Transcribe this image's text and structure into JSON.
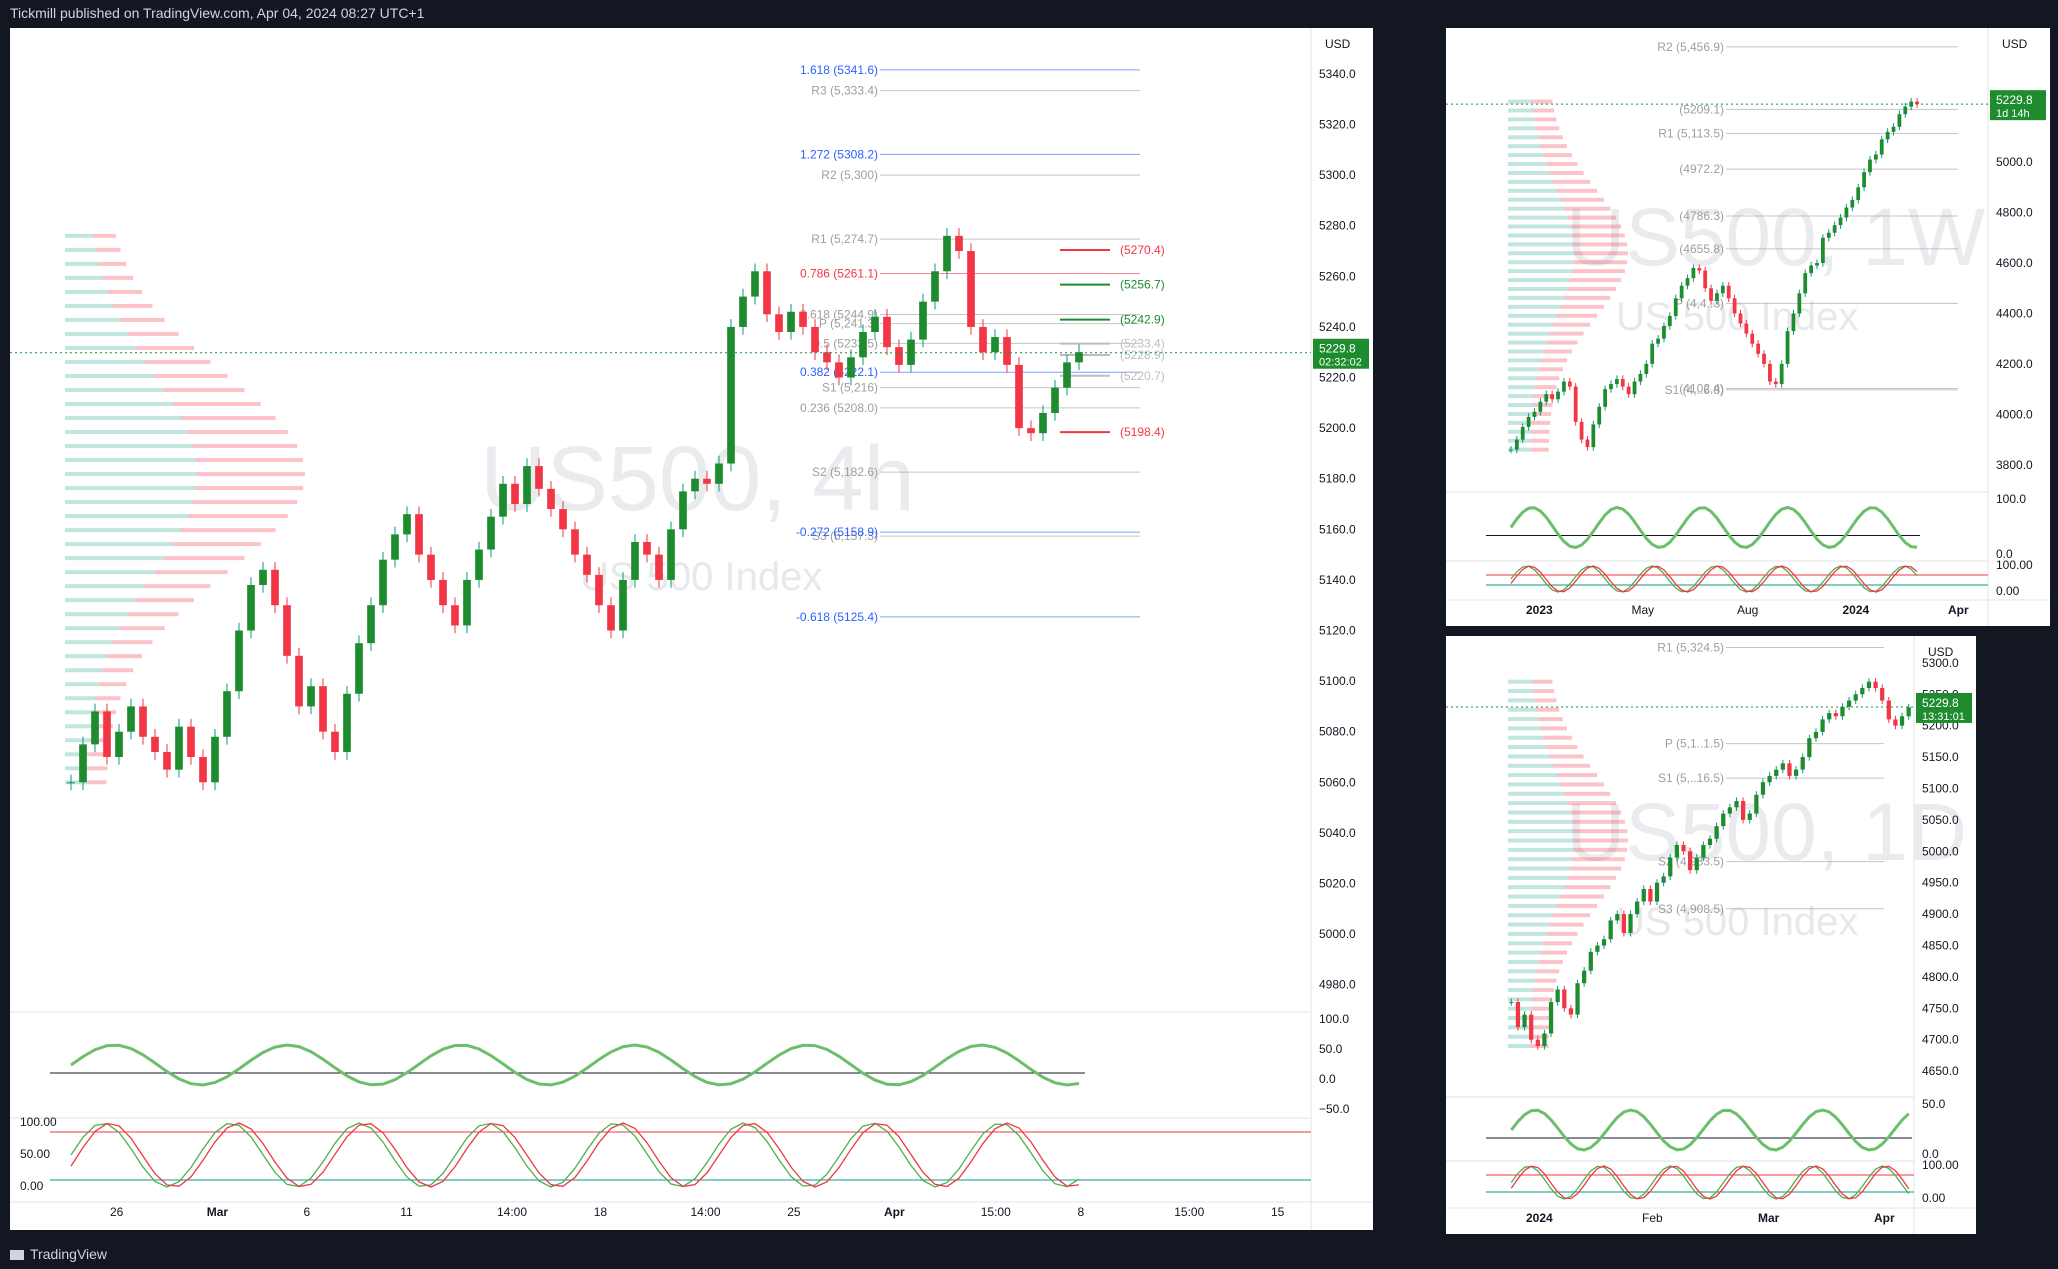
{
  "header": {
    "published": "Tickmill published on TradingView.com, Apr 04, 2024 08:27 UTC+1"
  },
  "footer": {
    "brand": "TradingView"
  },
  "colors": {
    "up": "#089981",
    "down": "#f23645",
    "fib": "#2962ff",
    "pivot": "#9e9e9e"
  },
  "chart_data": [
    {
      "type": "candlestick",
      "title": "US500, 4h",
      "watermark_symbol": "US500, 4h",
      "watermark_name": "US 500 Index",
      "currency": "USD",
      "last_price": "5229.8",
      "countdown": "02:32:02",
      "ylim": [
        4970,
        5355
      ],
      "y_ticks": [
        "5340.0",
        "5320.0",
        "5300.0",
        "5280.0",
        "5260.0",
        "5240.0",
        "5220.0",
        "5200.0",
        "5180.0",
        "5160.0",
        "5140.0",
        "5120.0",
        "5100.0",
        "5080.0",
        "5060.0",
        "5040.0",
        "5020.0",
        "5000.0",
        "4980.0"
      ],
      "x_ticks": [
        "26",
        "Mar",
        "6",
        "11",
        "14:00",
        "18",
        "14:00",
        "25",
        "Apr",
        "15:00",
        "8",
        "15:00",
        "15"
      ],
      "levels": [
        {
          "label": "1.618 (5341.6)",
          "value": 5341.6,
          "color": "#2962ff"
        },
        {
          "label": "R3 (5,333.4)",
          "value": 5333.4,
          "color": "#9e9e9e"
        },
        {
          "label": "1.272 (5308.2)",
          "value": 5308.2,
          "color": "#2962ff"
        },
        {
          "label": "R2 (5,300)",
          "value": 5300,
          "color": "#9e9e9e"
        },
        {
          "label": "R1 (5,274.7)",
          "value": 5274.7,
          "color": "#9e9e9e"
        },
        {
          "label": "0.786 (5261.1)",
          "value": 5261.1,
          "color": "#f23645"
        },
        {
          "label": "0.618 (5244.9)",
          "value": 5244.9,
          "color": "#9e9e9e"
        },
        {
          "label": "P (5,241.3)",
          "value": 5241.3,
          "color": "#9e9e9e"
        },
        {
          "label": "0.5 (5233.5)",
          "value": 5233.5,
          "color": "#9e9e9e"
        },
        {
          "label": "0.382 (5222.1)",
          "value": 5222.1,
          "color": "#2962ff"
        },
        {
          "label": "S1 (5,216)",
          "value": 5216,
          "color": "#9e9e9e"
        },
        {
          "label": "0.236 (5208.0)",
          "value": 5208.0,
          "color": "#9e9e9e"
        },
        {
          "label": "S2 (5,182.6)",
          "value": 5182.6,
          "color": "#9e9e9e"
        },
        {
          "label": "S3 (5,157.3)",
          "value": 5157.3,
          "color": "#9e9e9e"
        },
        {
          "label": "-0.272 (5158.9)",
          "value": 5158.9,
          "color": "#2962ff"
        },
        {
          "label": "-0.618 (5125.4)",
          "value": 5125.4,
          "color": "#2962ff"
        }
      ],
      "right_labels": [
        {
          "label": "(5270.4)",
          "value": 5270.4,
          "color": "#f23645"
        },
        {
          "label": "(5256.7)",
          "value": 5256.7,
          "color": "#1e8c2e"
        },
        {
          "label": "(5242.9)",
          "value": 5242.9,
          "color": "#1e8c2e"
        },
        {
          "label": "(5233.4)",
          "value": 5233.4,
          "color": "#bdbdbd"
        },
        {
          "label": "(5228.9)",
          "value": 5228.9,
          "color": "#bdbdbd"
        },
        {
          "label": "(5220.7)",
          "value": 5220.7,
          "color": "#bdbdbd"
        },
        {
          "label": "(5198.4)",
          "value": 5198.4,
          "color": "#f23645"
        }
      ],
      "osc1_ticks": [
        "100.0",
        "50.0",
        "0.0",
        "−50.0"
      ],
      "osc2_ticks": [
        "100.00",
        "50.00",
        "0.00"
      ],
      "close": [
        5060,
        5075,
        5088,
        5070,
        5080,
        5090,
        5078,
        5072,
        5065,
        5082,
        5070,
        5060,
        5078,
        5096,
        5120,
        5138,
        5144,
        5130,
        5110,
        5090,
        5098,
        5080,
        5072,
        5095,
        5115,
        5130,
        5148,
        5158,
        5166,
        5150,
        5140,
        5130,
        5122,
        5140,
        5152,
        5165,
        5178,
        5170,
        5185,
        5176,
        5168,
        5160,
        5150,
        5142,
        5130,
        5120,
        5140,
        5155,
        5150,
        5140,
        5160,
        5175,
        5180,
        5178,
        5186,
        5240,
        5252,
        5262,
        5245,
        5238,
        5246,
        5240,
        5230,
        5226,
        5220,
        5228,
        5238,
        5244,
        5232,
        5225,
        5235,
        5250,
        5262,
        5276,
        5270,
        5240,
        5230,
        5236,
        5225,
        5200,
        5198,
        5206,
        5216,
        5226,
        5230
      ]
    },
    {
      "type": "candlestick",
      "title": "US500, 1W",
      "watermark_symbol": "US500, 1W",
      "watermark_name": "US 500 Index",
      "currency": "USD",
      "last_price": "5229.8",
      "countdown": "1d 14h",
      "ylim": [
        3700,
        5500
      ],
      "y_ticks": [
        "5000.0",
        "4800.0",
        "4600.0",
        "4400.0",
        "4200.0",
        "4000.0",
        "3800.0"
      ],
      "x_ticks": [
        "2023",
        "May",
        "Aug",
        "2024",
        "Apr"
      ],
      "levels": [
        {
          "label": "R2 (5,456.9)",
          "value": 5456.9
        },
        {
          "label": "R1 (5,113.5)",
          "value": 5113.5
        },
        {
          "label": "(5209.1)",
          "value": 5209.1
        },
        {
          "label": "(4972.2)",
          "value": 4972.2
        },
        {
          "label": "(4786.3)",
          "value": 4786.3
        },
        {
          "label": "(4655.8)",
          "value": 4655.8
        },
        {
          "label": "P (4,4..3)",
          "value": 4440
        },
        {
          "label": "(4102.4)",
          "value": 4102.4
        },
        {
          "label": "S1 (4,..6.8)",
          "value": 4096.8
        }
      ],
      "osc1_ticks": [
        "100.0",
        "0.0"
      ],
      "osc2_ticks": [
        "100.00",
        "0.00"
      ],
      "close": [
        3860,
        3900,
        3950,
        3990,
        4010,
        4050,
        4080,
        4060,
        4090,
        4130,
        4110,
        3970,
        3900,
        3870,
        3960,
        4030,
        4100,
        4120,
        4140,
        4110,
        4080,
        4130,
        4160,
        4200,
        4280,
        4300,
        4350,
        4390,
        4460,
        4510,
        4540,
        4580,
        4570,
        4500,
        4450,
        4480,
        4510,
        4460,
        4400,
        4360,
        4320,
        4280,
        4240,
        4200,
        4130,
        4120,
        4200,
        4330,
        4400,
        4480,
        4560,
        4590,
        4600,
        4700,
        4720,
        4750,
        4780,
        4820,
        4850,
        4900,
        4960,
        5010,
        5030,
        5090,
        5120,
        5140,
        5190,
        5220,
        5240,
        5230
      ]
    },
    {
      "type": "candlestick",
      "title": "US500, 1D",
      "watermark_symbol": "US500, 1D",
      "watermark_name": "US 500 Index",
      "currency": "USD",
      "last_price": "5229.8",
      "countdown": "13:31:01",
      "ylim": [
        4620,
        5330
      ],
      "y_ticks": [
        "5300.0",
        "5250.0",
        "5200.0",
        "5150.0",
        "5100.0",
        "5050.0",
        "5000.0",
        "4950.0",
        "4900.0",
        "4850.0",
        "4800.0",
        "4750.0",
        "4700.0",
        "4650.0"
      ],
      "x_ticks": [
        "2024",
        "Feb",
        "Mar",
        "Apr"
      ],
      "levels": [
        {
          "label": "R1 (5,324.5)",
          "value": 5324.5
        },
        {
          "label": "P (5,1..1.5)",
          "value": 5171.5
        },
        {
          "label": "S1 (5,..16.5)",
          "value": 5116.5
        },
        {
          "label": "S2 (4,983.5)",
          "value": 4983.5
        },
        {
          "label": "S3 (4,908.5)",
          "value": 4908.5
        }
      ],
      "osc1_ticks": [
        "50.0",
        "0.0"
      ],
      "osc2_ticks": [
        "100.00",
        "0.00"
      ],
      "close": [
        4760,
        4720,
        4740,
        4700,
        4690,
        4710,
        4760,
        4780,
        4750,
        4740,
        4790,
        4810,
        4840,
        4850,
        4860,
        4890,
        4900,
        4870,
        4900,
        4920,
        4940,
        4920,
        4950,
        4960,
        4990,
        5010,
        5000,
        4970,
        4990,
        5010,
        5020,
        5040,
        5060,
        5070,
        5080,
        5050,
        5060,
        5090,
        5110,
        5120,
        5130,
        5140,
        5120,
        5130,
        5150,
        5180,
        5190,
        5210,
        5220,
        5215,
        5230,
        5240,
        5250,
        5260,
        5270,
        5260,
        5240,
        5210,
        5200,
        5215,
        5229
      ]
    }
  ]
}
